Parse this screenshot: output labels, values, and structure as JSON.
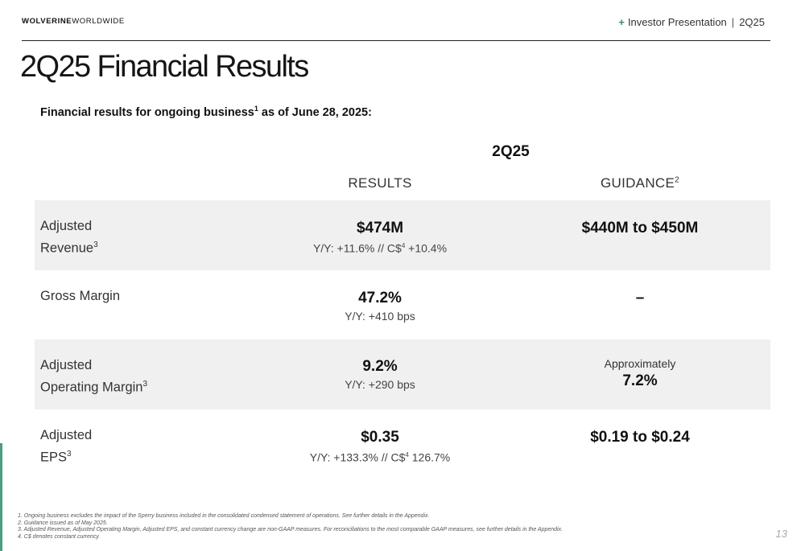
{
  "header": {
    "logo_bold": "WOLVERINE",
    "logo_light": "WORLDWIDE",
    "plus": "+",
    "presentation": "Investor Presentation",
    "divider": "|",
    "period": "2Q25"
  },
  "title": "2Q25 Financial Results",
  "subtitle": {
    "text_before": "Financial results for ongoing business",
    "sup": "1",
    "text_after": " as of June 28, 2025:"
  },
  "table": {
    "period_header": "2Q25",
    "col_results": "RESULTS",
    "col_guidance": "GUIDANCE",
    "col_guidance_sup": "2",
    "rows": [
      {
        "label_line1": "Adjusted",
        "label_line2": "Revenue",
        "label_sup": "3",
        "result_main": "$474M",
        "result_sub_before": "Y/Y: +11.6% // C$",
        "result_sub_sup": "4",
        "result_sub_after": " +10.4%",
        "guidance_main": "$440M to $450M"
      },
      {
        "label_line1": "Gross Margin",
        "result_main": "47.2%",
        "result_sub": "Y/Y: +410 bps",
        "guidance_main": "–"
      },
      {
        "label_line1": "Adjusted",
        "label_line2": "Operating Margin",
        "label_sup": "3",
        "result_main": "9.2%",
        "result_sub": "Y/Y: +290 bps",
        "guidance_small": "Approximately",
        "guidance_main": "7.2%"
      },
      {
        "label_line1": "Adjusted",
        "label_line2": "EPS",
        "label_sup": "3",
        "result_main": "$0.35",
        "result_sub_before": "Y/Y: +133.3% // C$",
        "result_sub_sup": "4",
        "result_sub_after": " 126.7%",
        "guidance_main": "$0.19 to $0.24"
      }
    ]
  },
  "footnotes": [
    "1. Ongoing business excludes the impact of the Sperry business included in the consolidated condensed statement of operations. See further details in the Appendix.",
    "2. Guidance issued as of May 2025.",
    "3. Adjusted Revenue, Adjusted Operating Margin, Adjusted EPS, and constant currency change are non-GAAP measures. For reconciliations to the most comparable GAAP measures, see further details in the Appendix.",
    "4. C$ denotes constant currency."
  ],
  "page_number": "13",
  "colors": {
    "accent": "#4f9b7e",
    "row_shade": "#f0f0f0"
  }
}
